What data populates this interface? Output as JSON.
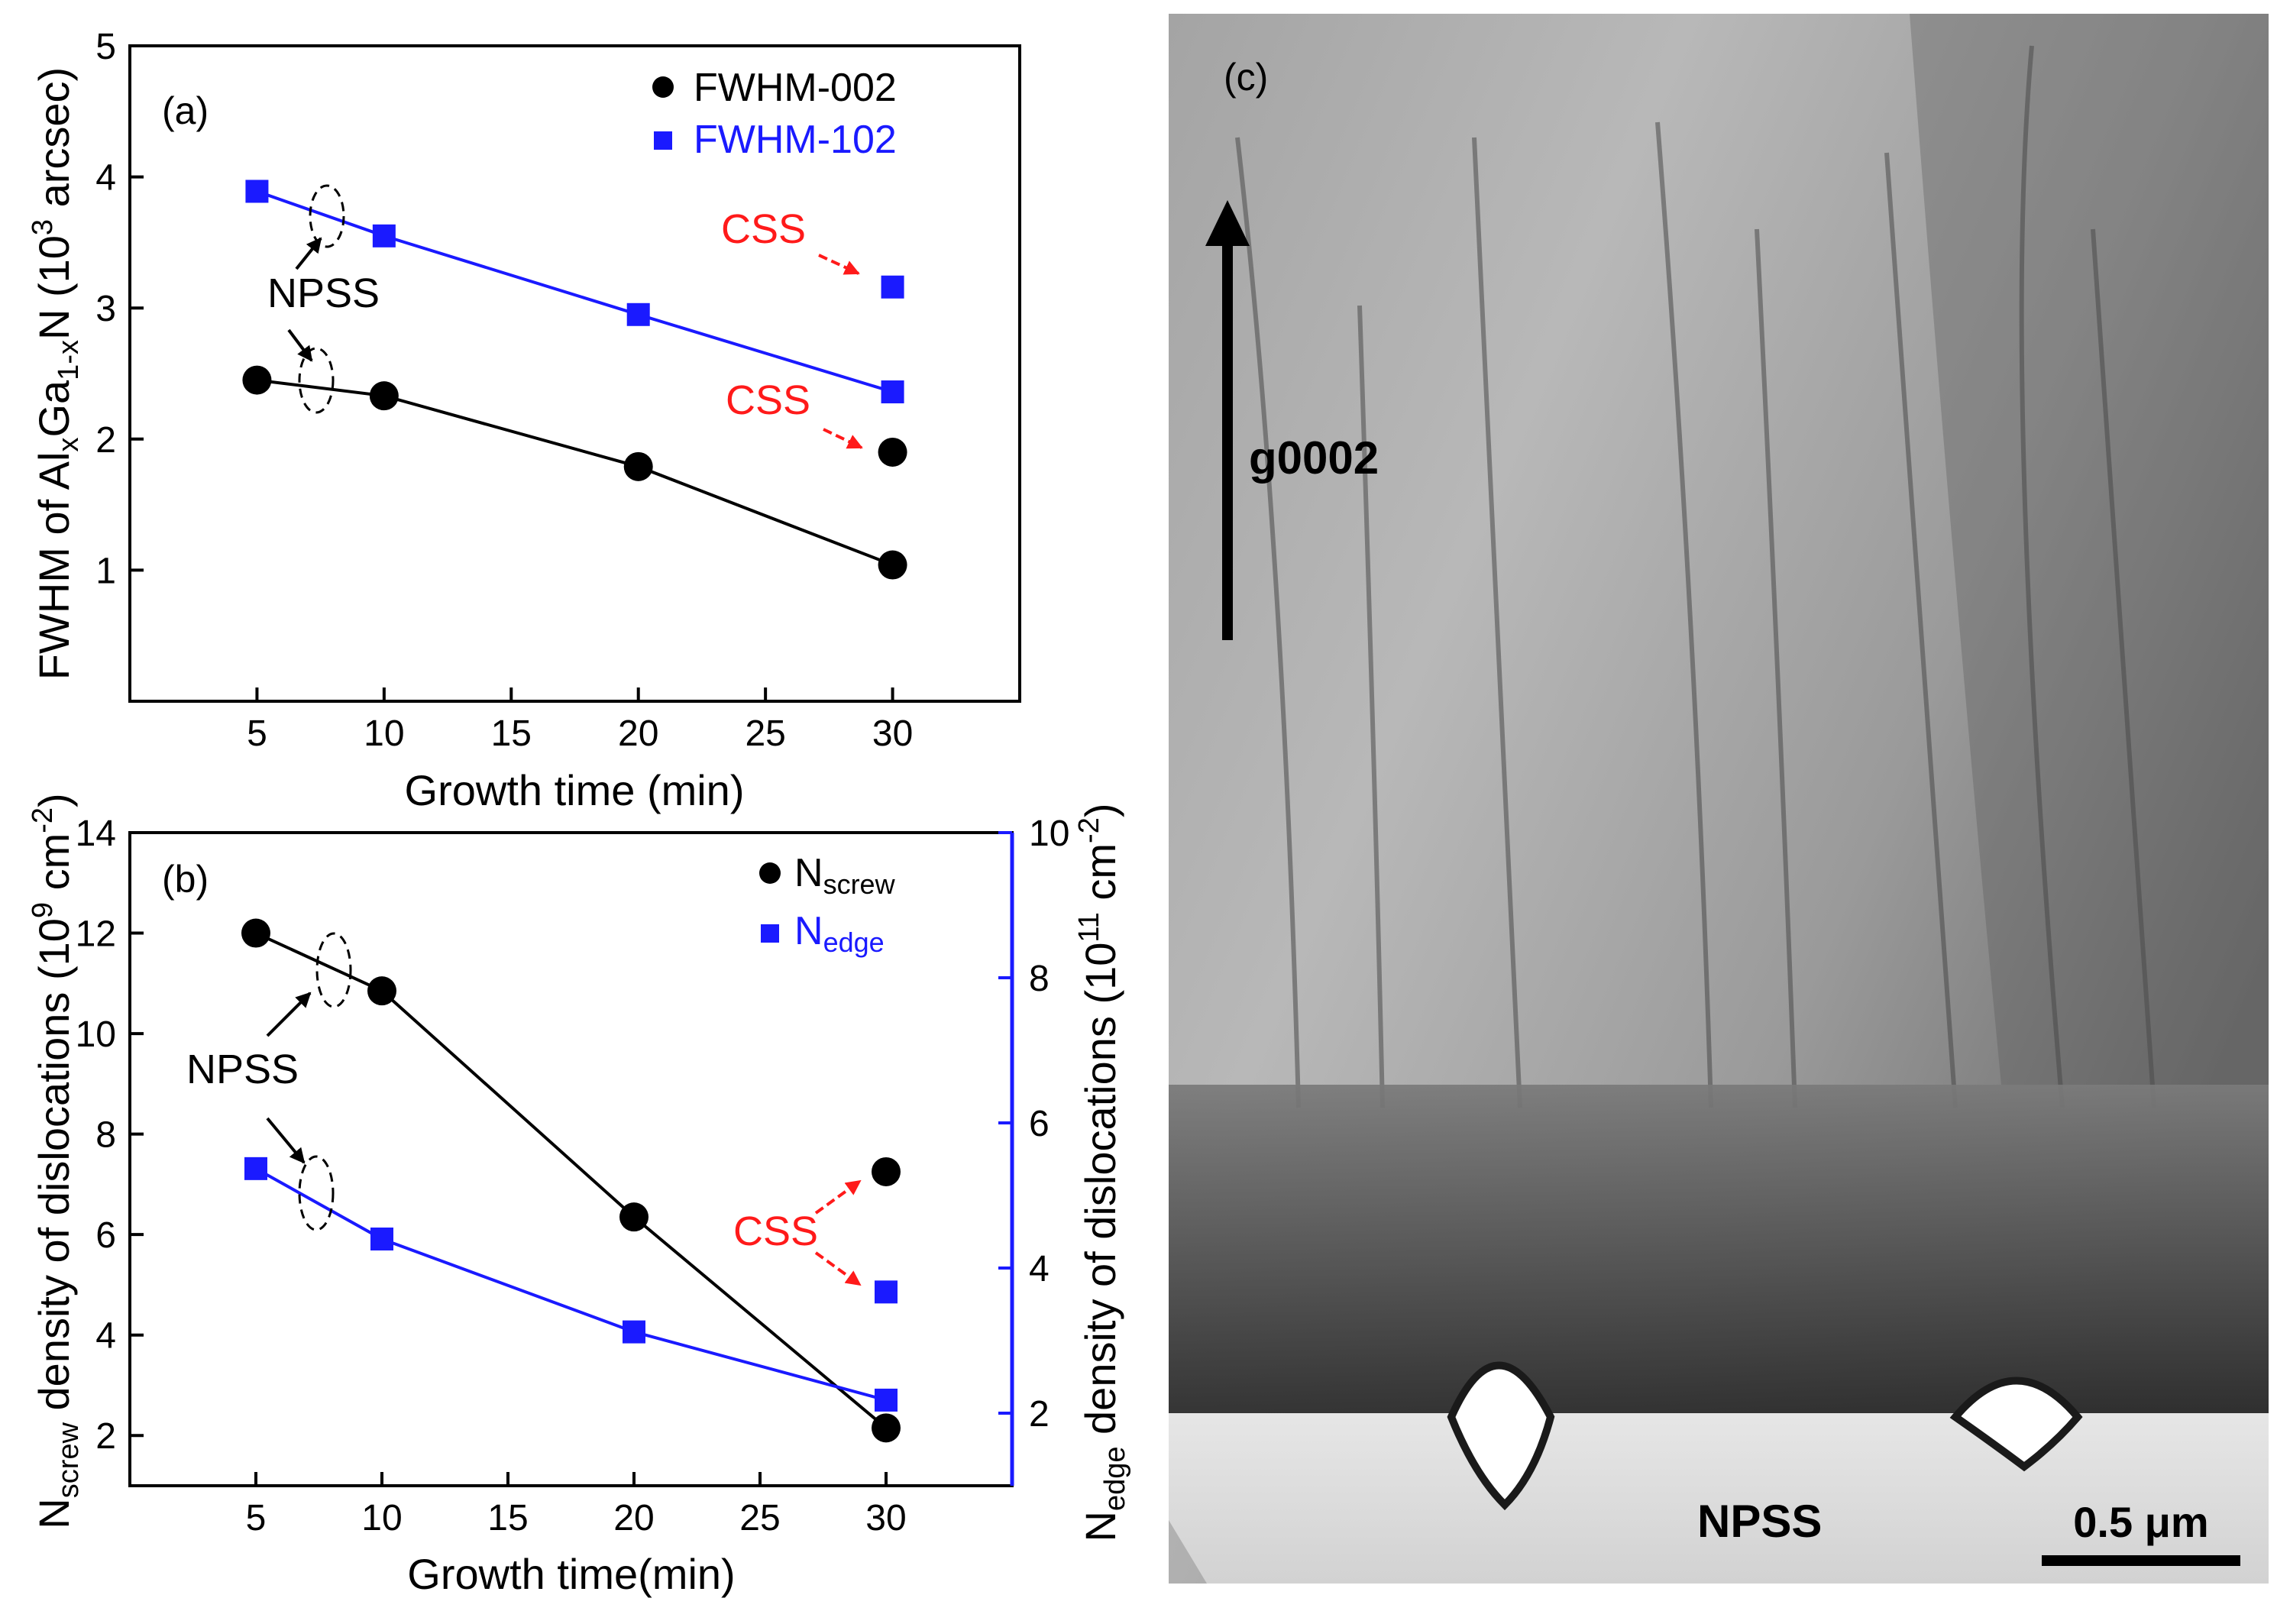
{
  "colors": {
    "black": "#000000",
    "blue": "#1a1aff",
    "red": "#ff1a1a"
  },
  "chart_data": [
    {
      "panel": "(a)",
      "type": "line",
      "xlabel": "Growth time (min)",
      "ylabel_parts": {
        "pre": "FWHM of Al",
        "sub1": "x",
        "mid": "Ga",
        "sub2": "1-x",
        "post": "N (10",
        "sup": "3",
        "end": " arcsec)"
      },
      "xlim": [
        0,
        35
      ],
      "ylim": [
        0,
        5
      ],
      "xticks": [
        5,
        10,
        15,
        20,
        25,
        30
      ],
      "yticks": [
        1,
        2,
        3,
        4,
        5
      ],
      "series": [
        {
          "name": "FWHM-002",
          "marker": "circle",
          "color": "#000000",
          "x": [
            5,
            10,
            20,
            30
          ],
          "values": [
            2.45,
            2.33,
            1.79,
            1.04
          ]
        },
        {
          "name": "FWHM-102",
          "marker": "square",
          "color": "#1a1aff",
          "x": [
            5,
            10,
            20,
            30
          ],
          "values": [
            3.89,
            3.55,
            2.95,
            2.36
          ]
        }
      ],
      "css_points": [
        {
          "series": "FWHM-002",
          "x": 30,
          "y": 1.9
        },
        {
          "series": "FWHM-102",
          "x": 30,
          "y": 3.16
        }
      ],
      "annotations": {
        "npss": "NPSS",
        "css_upper": "CSS",
        "css_lower": "CSS"
      }
    },
    {
      "panel": "(b)",
      "type": "line",
      "xlabel": "Growth time(min)",
      "ylabel_left_parts": {
        "pre": "N",
        "sub": "screw",
        "post": " density of dislocations (10",
        "sup1": "9",
        "mid": " cm",
        "sup2": "-2",
        "end": ")"
      },
      "ylabel_right_parts": {
        "pre": "N",
        "sub": "edge",
        "post": " density of dislocations (10",
        "sup1": "11",
        "mid": " cm",
        "sup2": "-2",
        "end": ")"
      },
      "xlim": [
        0,
        35
      ],
      "ylim_left": [
        1,
        14
      ],
      "ylim_right": [
        1,
        10
      ],
      "xticks": [
        5,
        10,
        15,
        20,
        25,
        30
      ],
      "yticks_left": [
        2,
        4,
        6,
        8,
        10,
        12,
        14
      ],
      "yticks_right": [
        2,
        4,
        6,
        8,
        10
      ],
      "series": [
        {
          "name": "N_screw",
          "label_base": "N",
          "label_sub": "screw",
          "axis": "left",
          "marker": "circle",
          "color": "#000000",
          "x": [
            5,
            10,
            20,
            30
          ],
          "values": [
            12.0,
            10.85,
            6.35,
            2.15
          ]
        },
        {
          "name": "N_edge",
          "label_base": "N",
          "label_sub": "edge",
          "axis": "right",
          "marker": "square",
          "color": "#1a1aff",
          "x": [
            5,
            10,
            20,
            30
          ],
          "values": [
            5.37,
            4.4,
            3.12,
            2.18
          ]
        }
      ],
      "css_points": [
        {
          "series": "N_screw",
          "axis": "left",
          "x": 30,
          "y": 7.25
        },
        {
          "series": "N_edge",
          "axis": "right",
          "x": 30,
          "y": 3.67
        }
      ],
      "annotations": {
        "npss": "NPSS",
        "css": "CSS"
      }
    }
  ],
  "tem_panel": {
    "label": "(c)",
    "g_vector": "g0002",
    "substrate_label": "NPSS",
    "scale_bar": "0.5 μm"
  }
}
